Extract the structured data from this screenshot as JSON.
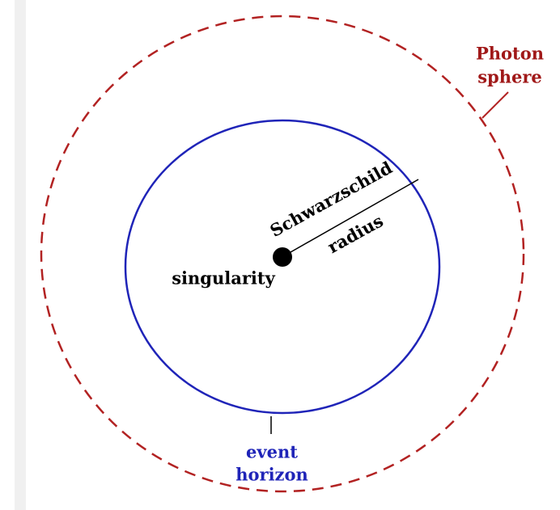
{
  "labels": {
    "photon_sphere": [
      "Photon",
      "sphere"
    ],
    "schwarzschild": "Schwarzschild",
    "radius": "radius",
    "singularity": "singularity",
    "event_horizon": [
      "event",
      "horizon"
    ]
  }
}
